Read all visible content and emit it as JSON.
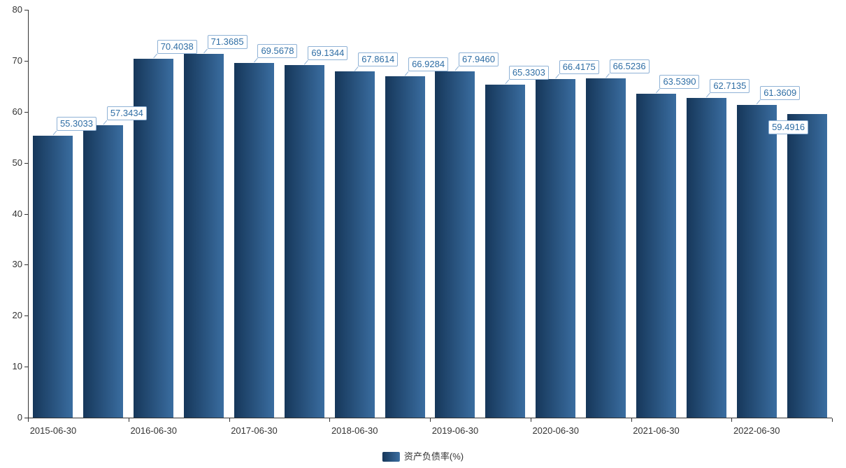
{
  "chart_data": {
    "type": "bar",
    "title": "",
    "legend": "资产负债率(%)",
    "series_name": "资产负债率(%)",
    "x_tick_labels": [
      "2015-06-30",
      "2016-06-30",
      "2017-06-30",
      "2018-06-30",
      "2019-06-30",
      "2020-06-30",
      "2021-06-30",
      "2022-06-30"
    ],
    "values": [
      55.3033,
      57.3434,
      70.4038,
      71.3685,
      69.5678,
      69.1344,
      67.8614,
      66.9284,
      67.946,
      65.3303,
      66.4175,
      66.5236,
      63.539,
      62.7135,
      61.3609,
      59.4916
    ],
    "value_labels": [
      "55.3033",
      "57.3434",
      "70.4038",
      "71.3685",
      "69.5678",
      "69.1344",
      "67.8614",
      "66.9284",
      "67.9460",
      "65.3303",
      "66.4175",
      "66.5236",
      "63.5390",
      "62.7135",
      "61.3609",
      "59.4916"
    ],
    "ylim": [
      0,
      80
    ],
    "y_ticks": [
      0,
      10,
      20,
      30,
      40,
      50,
      60,
      70,
      80
    ],
    "grid": false,
    "legend_position": "bottom",
    "bar_gradient": [
      "#16375a",
      "#3a6da0"
    ],
    "label_border_color": "#8fb2d6",
    "label_text_color": "#2e6da4",
    "axis_color": "#333333"
  }
}
